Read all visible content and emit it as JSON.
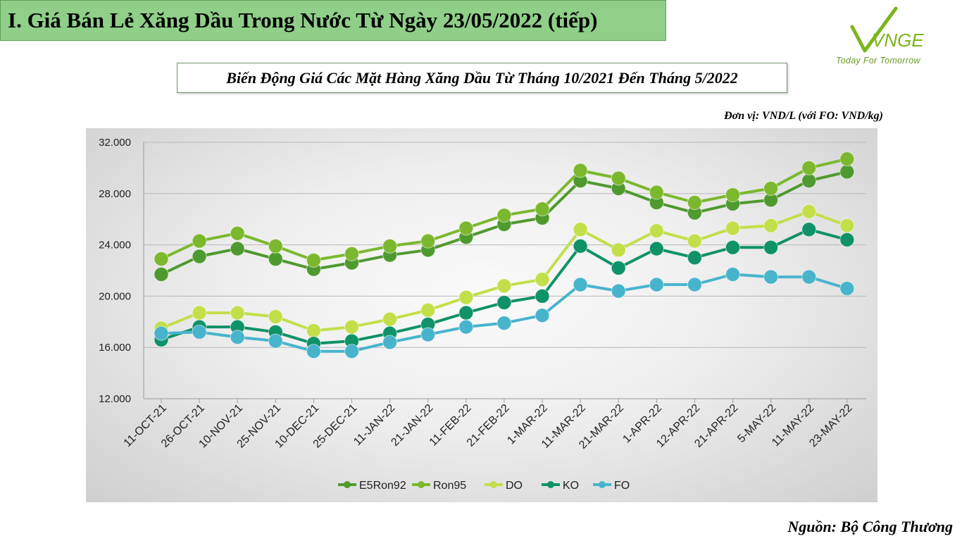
{
  "header": {
    "title": "I. Giá Bán Lẻ Xăng Dầu Trong Nước Từ Ngày 23/05/2022 (tiếp)"
  },
  "logo": {
    "brand": "VNGE",
    "tagline": "Today For Tomorrow",
    "brand_color": "#7ab51d"
  },
  "subtitle": "Biến Động Giá Các Mặt Hàng Xăng Dầu Từ Tháng 10/2021 Đến Tháng 5/2022",
  "unit_note": "Đơn vị: VND/L (với FO: VND/kg)",
  "source_note": "Nguồn: Bộ Công Thương",
  "chart_data": {
    "type": "line",
    "categories": [
      "11-OCT-21",
      "26-OCT-21",
      "10-NOV-21",
      "25-NOV-21",
      "10-DEC-21",
      "25-DEC-21",
      "11-JAN-22",
      "21-JAN-22",
      "11-FEB-22",
      "21-FEB-22",
      "1-MAR-22",
      "11-MAR-22",
      "21-MAR-22",
      "1-APR-22",
      "12-APR-22",
      "21-APR-22",
      "5-MAY-22",
      "11-MAY-22",
      "23-MAY-22"
    ],
    "ylim": [
      12000,
      32000
    ],
    "yticks": [
      12000,
      16000,
      20000,
      24000,
      28000,
      32000
    ],
    "ytick_labels": [
      "12.000",
      "16.000",
      "20.000",
      "24.000",
      "28.000",
      "32.000"
    ],
    "grid": true,
    "legend_position": "bottom",
    "series": [
      {
        "name": "E5Ron92",
        "color": "#4f9a2f",
        "values": [
          21700,
          23100,
          23700,
          22900,
          22100,
          22600,
          23200,
          23600,
          24600,
          25600,
          26100,
          29000,
          28400,
          27300,
          26500,
          27200,
          27500,
          29000,
          29700
        ]
      },
      {
        "name": "Ron95",
        "color": "#7cb82e",
        "values": [
          22900,
          24300,
          24900,
          23900,
          22800,
          23300,
          23900,
          24300,
          25300,
          26300,
          26800,
          29800,
          29200,
          28100,
          27300,
          27900,
          28400,
          30000,
          30700
        ]
      },
      {
        "name": "DO",
        "color": "#c2df4a",
        "values": [
          17500,
          18700,
          18700,
          18400,
          17300,
          17600,
          18200,
          18900,
          19900,
          20800,
          21300,
          25200,
          23600,
          25100,
          24300,
          25300,
          25500,
          26600,
          25500
        ]
      },
      {
        "name": "KO",
        "color": "#0f9268",
        "values": [
          16600,
          17600,
          17600,
          17200,
          16300,
          16500,
          17100,
          17800,
          18700,
          19500,
          20000,
          23900,
          22200,
          23700,
          23000,
          23800,
          23800,
          25200,
          24400
        ]
      },
      {
        "name": "FO",
        "color": "#48b4cc",
        "values": [
          17100,
          17200,
          16800,
          16500,
          15700,
          15700,
          16400,
          17000,
          17600,
          17900,
          18500,
          20900,
          20400,
          20900,
          20900,
          21700,
          21500,
          21500,
          20600
        ]
      }
    ]
  }
}
